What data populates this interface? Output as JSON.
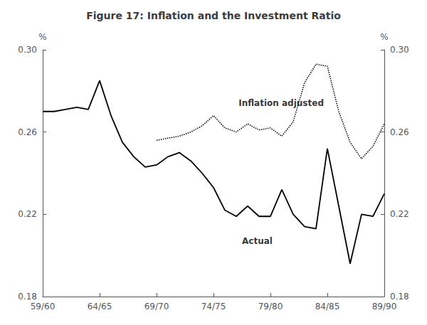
{
  "chart_data": {
    "type": "line",
    "title": "Figure 17: Inflation and the Investment Ratio",
    "ylabel": "%",
    "y2label": "%",
    "xlim": [
      0,
      30
    ],
    "xticks": [
      {
        "value": 0,
        "label": "59/60"
      },
      {
        "value": 5,
        "label": "64/65"
      },
      {
        "value": 10,
        "label": "69/70"
      },
      {
        "value": 15,
        "label": "74/75"
      },
      {
        "value": 20,
        "label": "79/80"
      },
      {
        "value": 25,
        "label": "84/85"
      },
      {
        "value": 30,
        "label": "89/90"
      }
    ],
    "ylim": [
      0.18,
      0.3
    ],
    "yticks": [
      0.18,
      0.22,
      0.26,
      {
        "value": 0.3,
        "label": "0.30"
      }
    ],
    "y2lim": [
      0.18,
      0.3
    ],
    "y2ticks": [
      0.18,
      0.22,
      0.26,
      {
        "value": 0.3,
        "label": "0.30"
      }
    ],
    "grid": false,
    "series": [
      {
        "name": "Actual",
        "color": "#000000",
        "line_style": "solid",
        "x": [
          0,
          1,
          2,
          3,
          4,
          5,
          6,
          7,
          8,
          9,
          10,
          11,
          12,
          13,
          14,
          15,
          16,
          17,
          18,
          19,
          20,
          21,
          22,
          23,
          24,
          25,
          26,
          27,
          28,
          29,
          30
        ],
        "values": [
          0.27,
          0.27,
          0.271,
          0.272,
          0.271,
          0.285,
          0.268,
          0.255,
          0.248,
          0.243,
          0.244,
          0.248,
          0.25,
          0.246,
          0.24,
          0.233,
          0.222,
          0.219,
          0.224,
          0.219,
          0.219,
          0.232,
          0.22,
          0.214,
          0.213,
          0.252,
          0.224,
          0.196,
          0.22,
          0.219,
          0.23
        ]
      },
      {
        "name": "Inflation adjusted",
        "color": "#000000",
        "line_style": "dotted",
        "x": [
          10,
          11,
          12,
          13,
          14,
          15,
          16,
          17,
          18,
          19,
          20,
          21,
          22,
          23,
          24,
          25,
          26,
          27,
          28,
          29,
          30
        ],
        "values": [
          0.256,
          0.257,
          0.258,
          0.26,
          0.263,
          0.268,
          0.262,
          0.26,
          0.264,
          0.261,
          0.262,
          0.258,
          0.265,
          0.284,
          0.293,
          0.292,
          0.27,
          0.255,
          0.247,
          0.253,
          0.264
        ]
      }
    ],
    "annotations": [
      {
        "text": "Inflation adjusted",
        "x": 17.2,
        "y": 0.274,
        "color": "#000000"
      },
      {
        "text": "Actual",
        "x": 17.5,
        "y": 0.207,
        "color": "#000000"
      }
    ]
  }
}
